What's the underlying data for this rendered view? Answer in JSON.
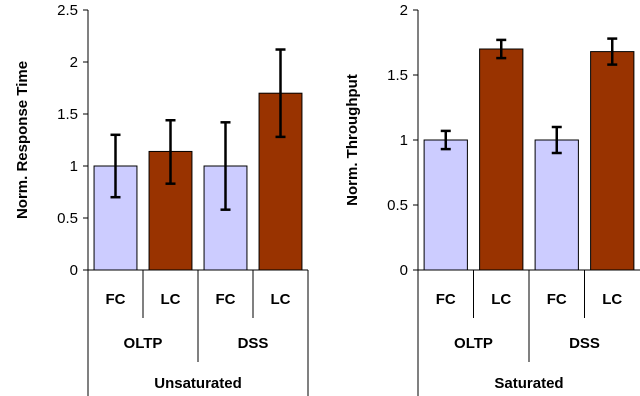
{
  "chart_data": [
    {
      "type": "bar",
      "ylabel": "Norm. Response Time",
      "ylim": [
        0,
        2.5
      ],
      "yticks": [
        "0",
        "0.5",
        "1",
        "1.5",
        "2",
        "2.5"
      ],
      "ytick_values": [
        0,
        0.5,
        1,
        1.5,
        2,
        2.5
      ],
      "group": "Unsaturated",
      "categories": [
        "FC",
        "LC",
        "FC",
        "LC"
      ],
      "subgroups": [
        "OLTP",
        "DSS"
      ],
      "values": [
        1.0,
        1.14,
        1.0,
        1.7
      ],
      "err_low": [
        0.7,
        0.83,
        0.58,
        1.28
      ],
      "err_high": [
        1.3,
        1.44,
        1.42,
        2.12
      ],
      "colors": [
        "#ccccff",
        "#993300",
        "#ccccff",
        "#993300"
      ],
      "grid": false
    },
    {
      "type": "bar",
      "ylabel": "Norm. Throughput",
      "ylim": [
        0,
        2
      ],
      "yticks": [
        "0",
        "0.5",
        "1",
        "1.5",
        "2"
      ],
      "ytick_values": [
        0,
        0.5,
        1,
        1.5,
        2
      ],
      "group": "Saturated",
      "categories": [
        "FC",
        "LC",
        "FC",
        "LC"
      ],
      "subgroups": [
        "OLTP",
        "DSS"
      ],
      "values": [
        1.0,
        1.7,
        1.0,
        1.68
      ],
      "err_low": [
        0.93,
        1.63,
        0.9,
        1.58
      ],
      "err_high": [
        1.07,
        1.77,
        1.1,
        1.78
      ],
      "colors": [
        "#ccccff",
        "#993300",
        "#ccccff",
        "#993300"
      ],
      "grid": false
    }
  ]
}
